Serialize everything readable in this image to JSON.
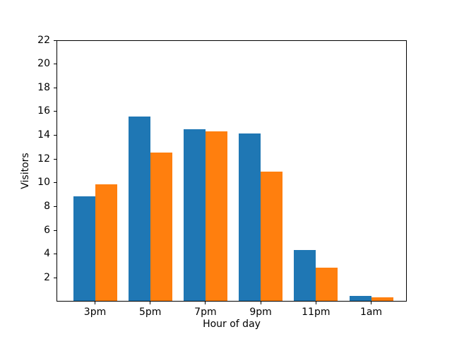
{
  "chart_data": {
    "type": "bar",
    "title": "",
    "xlabel": "Hour of day",
    "ylabel": "Visitors",
    "categories": [
      "3pm",
      "5pm",
      "7pm",
      "9pm",
      "11pm",
      "1am"
    ],
    "series": [
      {
        "name": "series-1",
        "color": "#1f77b4",
        "values": [
          8.8,
          15.5,
          14.45,
          14.1,
          4.3,
          0.4
        ]
      },
      {
        "name": "series-2",
        "color": "#ff7f0e",
        "values": [
          9.8,
          12.5,
          14.3,
          10.9,
          2.8,
          0.3
        ]
      }
    ],
    "ylim": [
      0,
      22
    ],
    "yticks": [
      2,
      4,
      6,
      8,
      10,
      12,
      14,
      16,
      18,
      20,
      22
    ],
    "grid": false,
    "legend": false,
    "spine_color": "#000000",
    "background_color": "#ffffff"
  }
}
